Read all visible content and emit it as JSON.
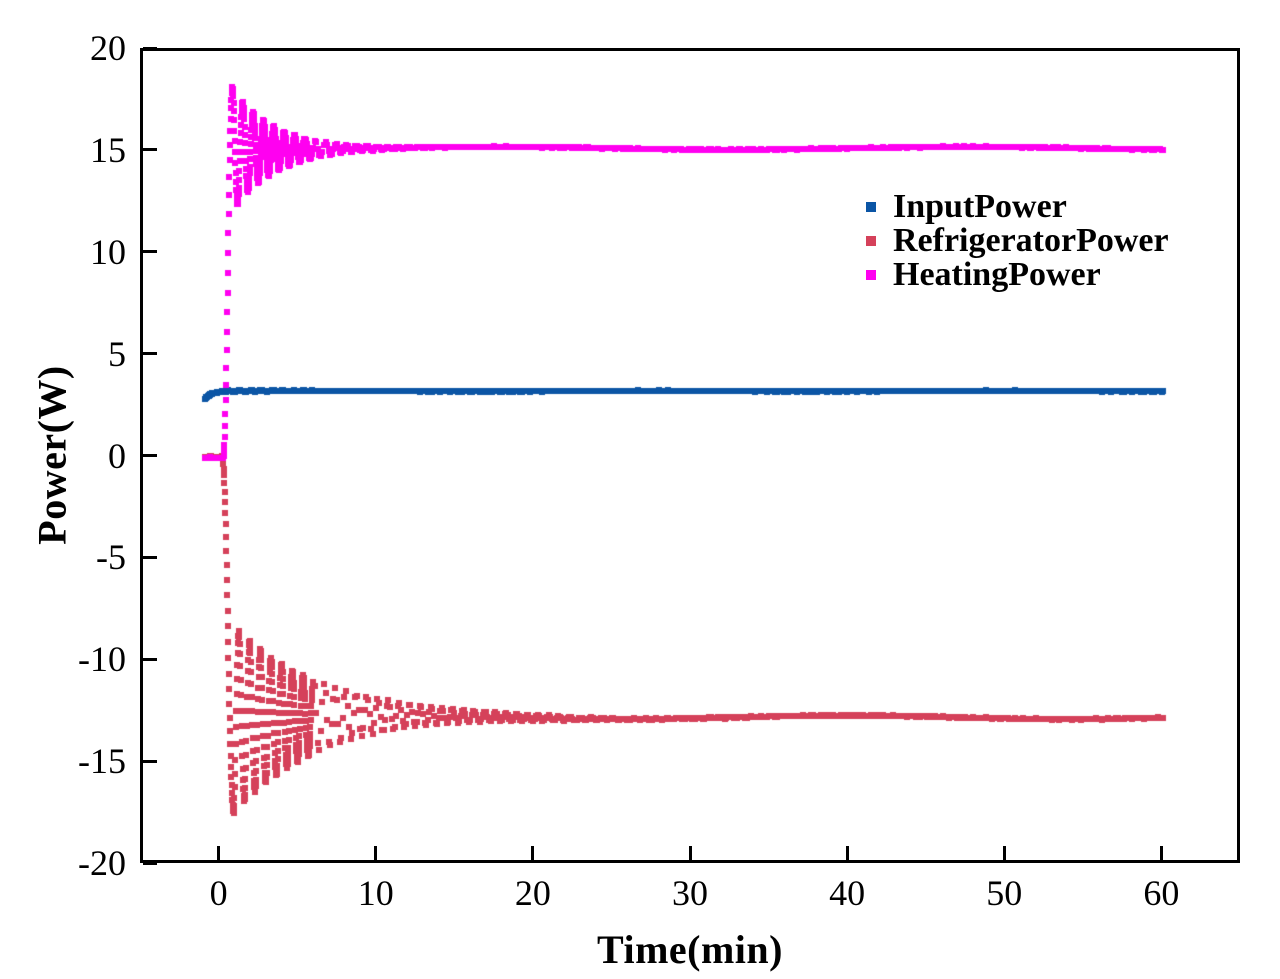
{
  "figure": {
    "background": "#ffffff",
    "frame_color": "#000000"
  },
  "chart_data": {
    "type": "scatter",
    "title": "",
    "xlabel": "Time(min)",
    "ylabel": "Power(W)",
    "xlim": [
      -5,
      65
    ],
    "ylim": [
      -20,
      20
    ],
    "x_ticks": [
      0,
      10,
      20,
      30,
      40,
      50,
      60
    ],
    "y_ticks": [
      20,
      15,
      10,
      5,
      0,
      -5,
      -10,
      -15,
      -20
    ],
    "grid": false,
    "legend_position": "upper-right-inside",
    "marker": "square",
    "marker_size_px": 6,
    "sampling": [
      {
        "until": 6,
        "dt": 0.02
      },
      {
        "until": 60.2,
        "dt": 0.1
      }
    ],
    "series": [
      {
        "name": "InputPower",
        "color": "#0B55A5",
        "summary": {
          "t_start": -0.85,
          "t_end": 60.2,
          "start_value": 2.78,
          "steady_value": 3.16
        },
        "key_points": [
          [
            -0.85,
            2.78
          ],
          [
            0,
            3.1
          ],
          [
            1,
            3.15
          ],
          [
            10,
            3.15
          ],
          [
            30,
            3.16
          ],
          [
            60,
            3.17
          ]
        ],
        "model": {
          "noise": 0.02,
          "segments": [
            {
              "type": "exp_approach",
              "from": -0.85,
              "to": 0.6,
              "start": 2.78,
              "end": 3.16,
              "tau": 0.38
            },
            {
              "type": "damped_osc",
              "from": 0.6,
              "to": 60.2,
              "t0": 0.6,
              "base": 3.16,
              "amp": 0.04,
              "tau": 2.0,
              "period": 0.7,
              "wobble": {
                "amp": 0.015,
                "period": 22,
                "t0": 0
              }
            }
          ]
        }
      },
      {
        "name": "RefrigeratorPower",
        "color": "#D5415A",
        "summary": {
          "t_start": -0.85,
          "t_end": 60.2,
          "start_value": -0.07,
          "min_value": -17.45,
          "t_min": 0.95,
          "steady_value": -12.85
        },
        "key_points": [
          [
            0,
            -0.07
          ],
          [
            0.95,
            -17.45
          ],
          [
            1.3,
            -8.3
          ],
          [
            2.5,
            -16.3
          ],
          [
            5,
            -14.9
          ],
          [
            10,
            -13.6
          ],
          [
            15,
            -13.2
          ],
          [
            20,
            -12.9
          ],
          [
            33,
            -12.75
          ],
          [
            60,
            -12.8
          ]
        ],
        "model": {
          "noise": 0.03,
          "segments": [
            {
              "type": "constant",
              "from": -0.85,
              "to": 0.25,
              "value": -0.07
            },
            {
              "type": "cos_ease",
              "from": 0.25,
              "to": 0.95,
              "start": -0.1,
              "end": -17.45
            },
            {
              "type": "damped_osc",
              "from": 0.95,
              "to": 60.2,
              "t0": 0.95,
              "base": -12.85,
              "amp": -4.6,
              "tau": 5.4,
              "period": 0.68,
              "wobble": {
                "amp": 0.09,
                "period": 28,
                "t0": 5
              }
            }
          ]
        }
      },
      {
        "name": "HeatingPower",
        "color": "#FF00F0",
        "summary": {
          "t_start": -0.85,
          "t_end": 60.2,
          "start_value": -0.12,
          "peak_value": 18.1,
          "t_peak": 0.88,
          "steady_value": 15.08
        },
        "key_points": [
          [
            0,
            -0.12
          ],
          [
            0.88,
            18.1
          ],
          [
            1.2,
            12.2
          ],
          [
            1.8,
            17.1
          ],
          [
            2.5,
            16.5
          ],
          [
            5,
            15.6
          ],
          [
            8,
            15.3
          ],
          [
            10,
            15.15
          ],
          [
            30,
            15.05
          ],
          [
            60,
            15.1
          ]
        ],
        "model": {
          "noise": 0.025,
          "segments": [
            {
              "type": "constant",
              "from": -0.85,
              "to": 0.3,
              "value": -0.12
            },
            {
              "type": "cos_ease",
              "from": 0.3,
              "to": 0.88,
              "start": -0.12,
              "end": 18.08
            },
            {
              "type": "damped_osc",
              "from": 0.88,
              "to": 60.2,
              "t0": 0.88,
              "base": 15.08,
              "amp": 3.0,
              "tau": 2.7,
              "period": 0.66,
              "wobble": {
                "amp": 0.07,
                "period": 30,
                "t0": 10
              }
            }
          ]
        }
      }
    ]
  },
  "legend": {
    "items": [
      {
        "label": "InputPower"
      },
      {
        "label": "RefrigeratorPower"
      },
      {
        "label": "HeatingPower"
      }
    ]
  }
}
